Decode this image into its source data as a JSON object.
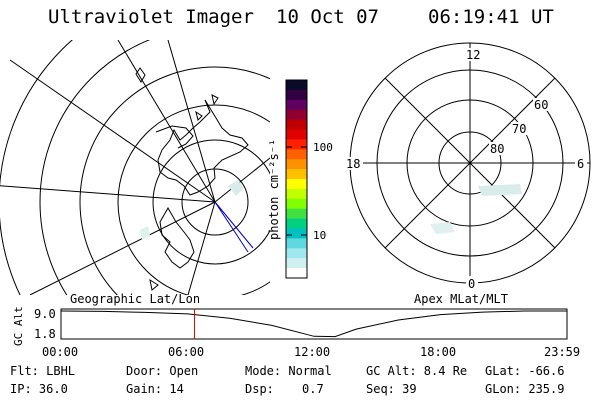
{
  "header": {
    "title": "Ultraviolet Imager",
    "date": "10 Oct 07",
    "time": "06:19:41 UT"
  },
  "colorbar": {
    "label": "photon cm⁻²s⁻¹",
    "ticks": [
      "100",
      "10"
    ],
    "colors": [
      "#0a0a2a",
      "#300040",
      "#600060",
      "#900030",
      "#c00000",
      "#e00000",
      "#ff2000",
      "#ff6000",
      "#ff9000",
      "#ffc000",
      "#ffff00",
      "#c0ff00",
      "#80ff00",
      "#40e040",
      "#00d080",
      "#00c0c0",
      "#60d8e0",
      "#a0e8f0",
      "#d0f0f0",
      "#ffffff"
    ]
  },
  "geo_panel": {
    "label": "Geographic Lat/Lon"
  },
  "polar_panel": {
    "label": "Apex MLat/MLT",
    "mlt_labels": [
      "12",
      "6",
      "0",
      "18"
    ],
    "lat_labels": [
      "60",
      "70",
      "80"
    ]
  },
  "timeline": {
    "ylabel": "GC Alt",
    "ytick_top": "9.0",
    "ytick_bottom": "1.8",
    "x_ticks": [
      "00:00",
      "06:00",
      "12:00",
      "18:00",
      "23:59"
    ]
  },
  "chart_data": {
    "type": "line",
    "title": "GC Alt",
    "xlabel": "",
    "ylabel": "GC Alt",
    "x_ticks": [
      "00:00",
      "06:00",
      "12:00",
      "18:00",
      "23:59"
    ],
    "ylim": [
      1.8,
      9.0
    ],
    "series": [
      {
        "x": [
          0,
          2,
          4,
          6,
          8,
          10,
          12,
          13,
          14,
          16,
          18,
          20,
          22,
          24
        ],
        "values": [
          9.0,
          8.9,
          8.6,
          8.2,
          7.0,
          5.0,
          2.0,
          1.9,
          4.0,
          6.5,
          8.0,
          8.7,
          9.0,
          9.0
        ]
      }
    ],
    "current_time_marker": 6.33
  },
  "status": {
    "flt": "Flt: LBHL",
    "door": "Door: Open",
    "mode": "Mode: Normal",
    "gcalt": "GC Alt: 8.4 Re",
    "glat": "GLat: -66.6",
    "ip": "IP: 36.0",
    "gain": "Gain: 14",
    "dsp_label": "Dsp:",
    "dsp_value": "0.7",
    "seq": "Seq: 39",
    "glon": "GLon: 235.9"
  }
}
